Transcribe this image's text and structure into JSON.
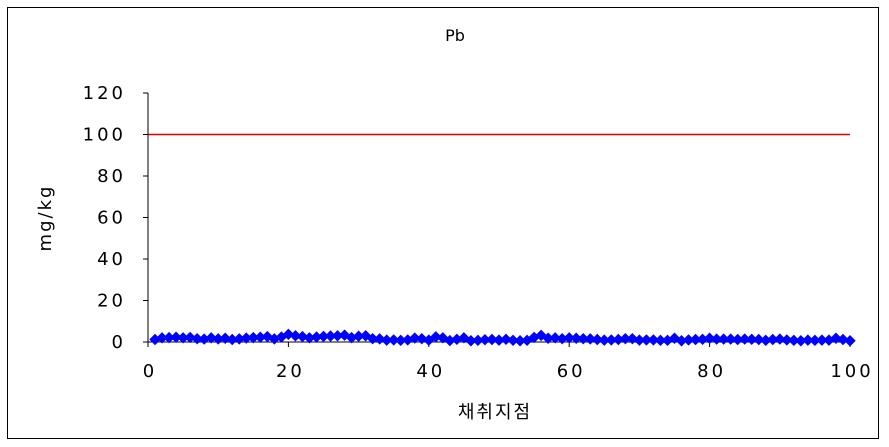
{
  "chart_data": {
    "type": "line",
    "title": "Pb",
    "xlabel": "채취지점",
    "ylabel": "mg/kg",
    "xlim": [
      0,
      100
    ],
    "ylim": [
      0,
      120
    ],
    "x_ticks": [
      "0",
      "20",
      "40",
      "60",
      "80",
      "100"
    ],
    "y_ticks": [
      "0",
      "20",
      "40",
      "60",
      "80",
      "100",
      "120"
    ],
    "grid": false,
    "legend": "none",
    "reference_line": {
      "y": 100,
      "x_start": 0,
      "x_end": 100,
      "color": "#dd0000"
    },
    "series": [
      {
        "marker": "diamond",
        "color": "#0000ff",
        "x": [
          1,
          2,
          3,
          4,
          5,
          6,
          7,
          8,
          9,
          10,
          11,
          12,
          13,
          14,
          15,
          16,
          17,
          18,
          19,
          20,
          21,
          22,
          23,
          24,
          25,
          26,
          27,
          28,
          29,
          30,
          31,
          32,
          33,
          34,
          35,
          36,
          37,
          38,
          39,
          40,
          41,
          42,
          43,
          44,
          45,
          46,
          47,
          48,
          49,
          50,
          51,
          52,
          53,
          54,
          55,
          56,
          57,
          58,
          59,
          60,
          61,
          62,
          63,
          64,
          65,
          66,
          67,
          68,
          69,
          70,
          71,
          72,
          73,
          74,
          75,
          76,
          77,
          78,
          79,
          80,
          81,
          82,
          83,
          84,
          85,
          86,
          87,
          88,
          89,
          90,
          91,
          92,
          93,
          94,
          95,
          96,
          97,
          98,
          99,
          100
        ],
        "values": [
          1.2,
          2.0,
          2.1,
          2.3,
          2.0,
          2.2,
          1.6,
          1.4,
          2.0,
          1.5,
          1.8,
          1.2,
          1.5,
          1.9,
          2.1,
          2.3,
          2.6,
          1.5,
          2.4,
          3.7,
          3.0,
          2.6,
          2.0,
          2.4,
          2.7,
          2.9,
          3.0,
          3.3,
          2.1,
          2.8,
          3.0,
          1.6,
          1.5,
          0.9,
          1.0,
          0.8,
          1.0,
          1.9,
          1.6,
          0.9,
          2.5,
          2.0,
          0.7,
          1.3,
          2.0,
          0.6,
          0.8,
          1.1,
          1.2,
          0.9,
          1.3,
          0.8,
          0.6,
          0.8,
          2.2,
          3.2,
          1.8,
          2.0,
          1.6,
          2.0,
          1.8,
          1.6,
          1.5,
          1.2,
          0.9,
          1.0,
          1.2,
          1.6,
          1.6,
          0.9,
          1.0,
          1.0,
          0.8,
          0.8,
          1.8,
          0.6,
          1.0,
          1.2,
          1.3,
          1.8,
          1.4,
          1.4,
          1.4,
          1.2,
          1.4,
          1.3,
          1.2,
          0.8,
          1.2,
          1.4,
          1.0,
          0.8,
          0.6,
          0.9,
          0.8,
          0.9,
          0.9,
          1.8,
          1.2,
          0.6
        ]
      }
    ]
  }
}
